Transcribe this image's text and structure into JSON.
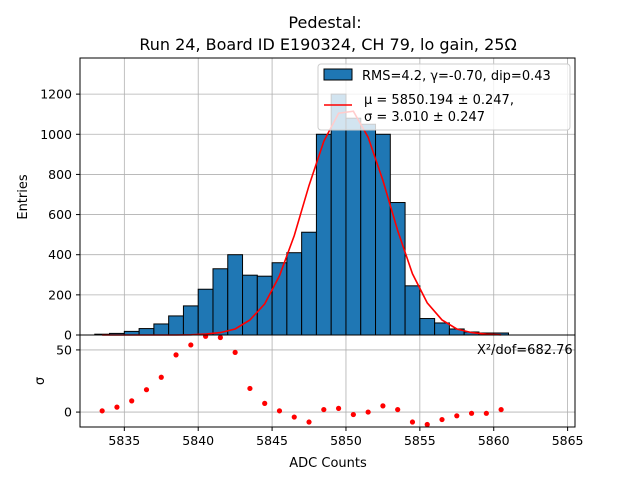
{
  "chart_data": [
    {
      "type": "bar",
      "title": "Pedestal:",
      "subtitle": "Run 24, Board ID E190324, CH 79, lo gain, 25Ω",
      "xlabel": "",
      "ylabel": "Entries",
      "xlim": [
        5832,
        5865.5
      ],
      "ylim": [
        0,
        1380
      ],
      "yticks": [
        0,
        200,
        400,
        600,
        800,
        1000,
        1200
      ],
      "grid": true,
      "legend_position": "top-right",
      "bin_width": 1,
      "bins": {
        "left_edges": [
          5833,
          5834,
          5835,
          5836,
          5837,
          5838,
          5839,
          5840,
          5841,
          5842,
          5843,
          5844,
          5845,
          5846,
          5847,
          5848,
          5849,
          5850,
          5851,
          5852,
          5853,
          5854,
          5855,
          5856,
          5857,
          5858,
          5859,
          5860
        ],
        "values": [
          4,
          8,
          18,
          32,
          55,
          95,
          145,
          228,
          330,
          400,
          298,
          293,
          360,
          410,
          512,
          1000,
          1200,
          1080,
          1050,
          1000,
          660,
          245,
          82,
          60,
          30,
          15,
          10,
          10
        ]
      },
      "histogram_label": "RMS=4.2, γ=-0.70, dip=0.43",
      "fit": {
        "label_line1": "μ = 5850.194 ± 0.247,",
        "label_line2": "σ = 3.010 ± 0.247",
        "x": [
          5833.5,
          5834.5,
          5835.5,
          5836.5,
          5837.5,
          5838.5,
          5839.5,
          5840.5,
          5841.5,
          5842.5,
          5843.5,
          5844.5,
          5845.5,
          5846.5,
          5847.5,
          5848.5,
          5849.5,
          5850.5,
          5851.5,
          5852.5,
          5853.5,
          5854.5,
          5855.5,
          5856.5,
          5857.5,
          5858.5,
          5859.5,
          5860.5
        ],
        "y": [
          0,
          0,
          0,
          0,
          0,
          0,
          1,
          5,
          12,
          30,
          75,
          155,
          295,
          495,
          745,
          965,
          1105,
          1115,
          985,
          770,
          520,
          305,
          160,
          75,
          30,
          12,
          4,
          1
        ]
      },
      "annotation": "X²/dof=682.76"
    },
    {
      "type": "scatter",
      "title": "",
      "xlabel": "ADC Counts",
      "ylabel": "σ",
      "xlim": [
        5832,
        5865.5
      ],
      "ylim": [
        -12,
        62
      ],
      "xticks": [
        5835,
        5840,
        5845,
        5850,
        5855,
        5860,
        5865
      ],
      "yticks": [
        0,
        50
      ],
      "grid": true,
      "x": [
        5833.5,
        5834.5,
        5835.5,
        5836.5,
        5837.5,
        5838.5,
        5839.5,
        5840.5,
        5841.5,
        5842.5,
        5843.5,
        5844.5,
        5845.5,
        5846.5,
        5847.5,
        5848.5,
        5849.5,
        5850.5,
        5851.5,
        5852.5,
        5853.5,
        5854.5,
        5855.5,
        5856.5,
        5857.5,
        5858.5,
        5859.5,
        5860.5
      ],
      "y": [
        1,
        4,
        9,
        18,
        28,
        46,
        54,
        61,
        60,
        48,
        19,
        7,
        1,
        -4,
        -8,
        2,
        3,
        -2,
        0,
        5,
        2,
        -8,
        -10,
        -6,
        -3,
        -1,
        -1,
        2
      ],
      "color": "#ff0000"
    }
  ],
  "colors": {
    "bar_fill": "#1f77b4",
    "bar_edge": "#000000",
    "fit_line": "#ff0000",
    "grid": "#b0b0b0"
  }
}
